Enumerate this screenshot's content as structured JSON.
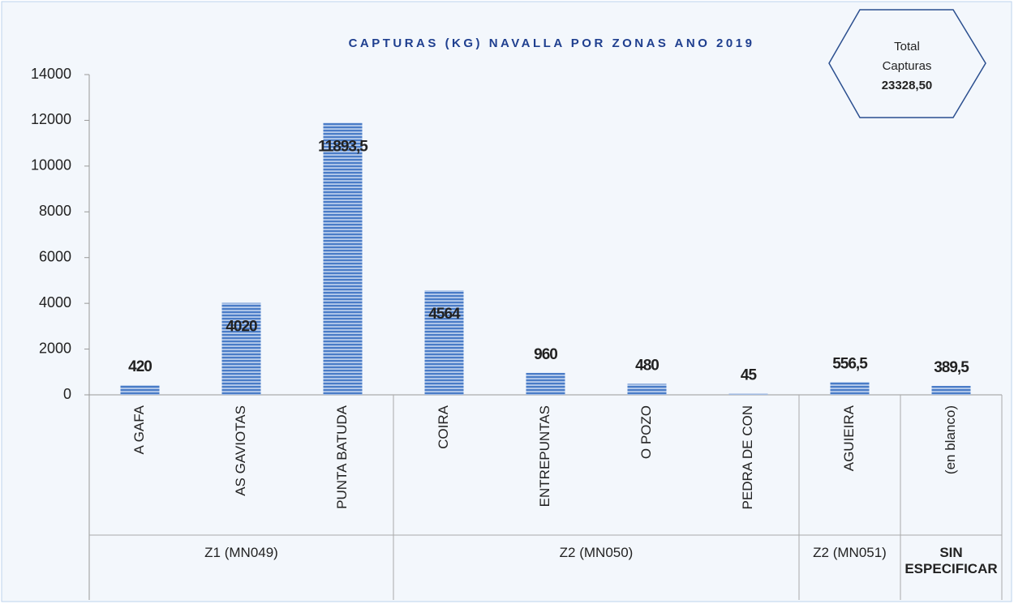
{
  "chart_data": {
    "type": "bar",
    "title": "CAPTURAS (KG) NAVALLA POR ZONAS ANO 2019",
    "categories": [
      "A GAFA",
      "AS GAVIOTAS",
      "PUNTA BATUDA",
      "COIRA",
      "ENTREPUNTAS",
      "O POZO",
      "PEDRA DE CON",
      "AGUIEIRA",
      "(en blanco)"
    ],
    "values": [
      420,
      4020,
      11893.5,
      4564,
      960,
      480,
      45,
      556.5,
      389.5
    ],
    "value_labels": [
      "420",
      "4020",
      "11893,5",
      "4564",
      "960",
      "480",
      "45",
      "556,5",
      "389,5"
    ],
    "groups": [
      {
        "label": "Z1 (MN049)",
        "span": 3
      },
      {
        "label": "Z2 (MN050)",
        "span": 4
      },
      {
        "label": "Z2 (MN051)",
        "span": 1
      },
      {
        "label": "SIN ESPECIFICAR",
        "span": 1
      }
    ],
    "color": "#4a7cc7",
    "ylim": [
      0,
      14000
    ],
    "yticks": [
      0,
      2000,
      4000,
      6000,
      8000,
      10000,
      12000,
      14000
    ],
    "grid": false,
    "annotation": {
      "lines": [
        "Total",
        "Capturas"
      ],
      "total": 23328.5,
      "total_label": "23328,50"
    }
  }
}
